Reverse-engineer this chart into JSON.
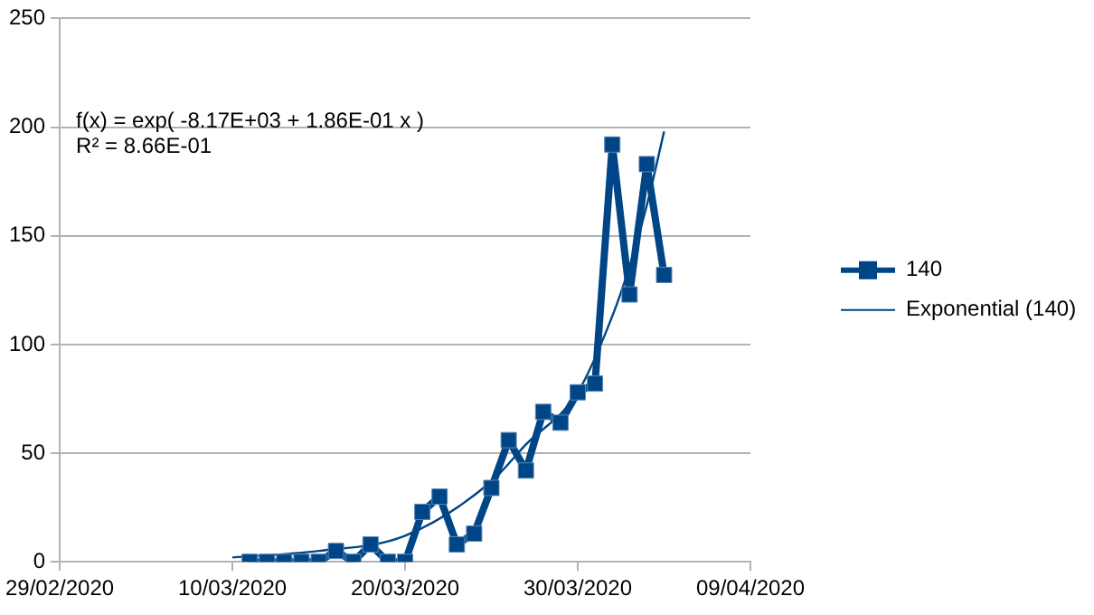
{
  "chart_data": {
    "type": "line",
    "x": [
      "2020-03-11",
      "2020-03-12",
      "2020-03-13",
      "2020-03-14",
      "2020-03-15",
      "2020-03-16",
      "2020-03-17",
      "2020-03-18",
      "2020-03-19",
      "2020-03-20",
      "2020-03-21",
      "2020-03-22",
      "2020-03-23",
      "2020-03-24",
      "2020-03-25",
      "2020-03-26",
      "2020-03-27",
      "2020-03-28",
      "2020-03-29",
      "2020-03-30",
      "2020-03-31",
      "2020-04-01",
      "2020-04-02",
      "2020-04-03",
      "2020-04-04"
    ],
    "series": [
      {
        "name": "140",
        "color": "#004586",
        "marker": "square",
        "values": [
          0,
          0,
          0,
          0,
          0,
          5,
          0,
          8,
          0,
          0,
          23,
          30,
          8,
          13,
          34,
          56,
          42,
          69,
          64,
          78,
          82,
          192,
          123,
          183,
          132
        ]
      },
      {
        "name": "Exponential (140)",
        "type": "line",
        "color": "#004586",
        "marker": "none",
        "x": [
          "2020-03-10",
          "2020-03-15",
          "2020-03-20",
          "2020-03-25",
          "2020-03-27",
          "2020-03-30",
          "2020-04-01",
          "2020-04-02",
          "2020-04-03",
          "2020-04-04"
        ],
        "values": [
          2,
          5,
          12,
          37,
          54,
          78,
          113,
          136,
          164,
          198
        ]
      }
    ],
    "xlim": [
      "2020-02-29",
      "2020-04-09"
    ],
    "xticks": [
      {
        "value": "2020-02-29",
        "label": "29/02/2020"
      },
      {
        "value": "2020-03-10",
        "label": "10/03/2020"
      },
      {
        "value": "2020-03-20",
        "label": "20/03/2020"
      },
      {
        "value": "2020-03-30",
        "label": "30/03/2020"
      },
      {
        "value": "2020-04-09",
        "label": "09/04/2020"
      }
    ],
    "ylim": [
      0,
      250
    ],
    "yticks": [
      0,
      50,
      100,
      150,
      200,
      250
    ],
    "grid": "y",
    "legend": "right",
    "annotations": [
      "f(x) = exp( -8.17E+03 + 1.86E-01 x )",
      "R² = 8.66E-01"
    ]
  }
}
